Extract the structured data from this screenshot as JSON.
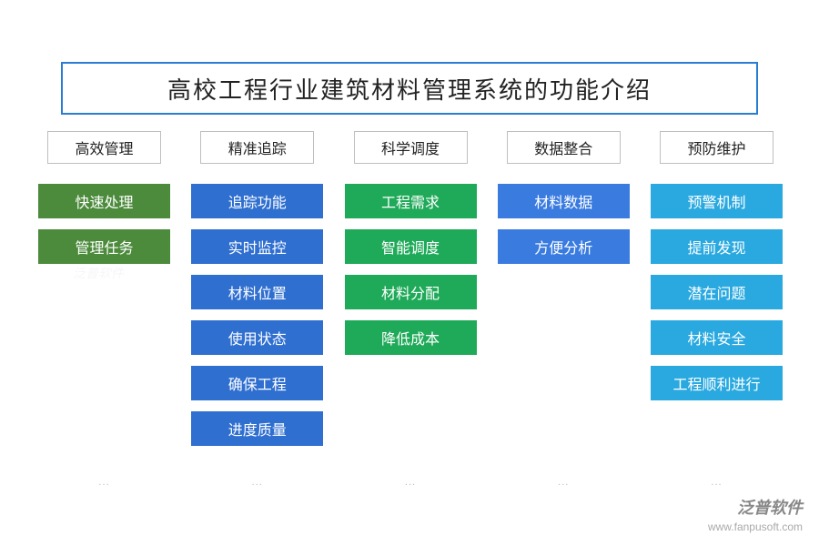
{
  "title": "高校工程行业建筑材料管理系统的功能介绍",
  "title_border_color": "#2b7cd3",
  "title_fontsize": 26,
  "header_border_color": "#bfbfbf",
  "header_fontsize": 16,
  "item_fontsize": 16,
  "item_text_color": "#ffffff",
  "background_color": "#ffffff",
  "ellipsis_text": "...",
  "ellipsis_color": "#bbbbbb",
  "columns": [
    {
      "header": "高效管理",
      "color": "#4b8b3b",
      "items": [
        "快速处理",
        "管理任务"
      ]
    },
    {
      "header": "精准追踪",
      "color": "#2f6fd0",
      "items": [
        "追踪功能",
        "实时监控",
        "材料位置",
        "使用状态",
        "确保工程",
        "进度质量"
      ]
    },
    {
      "header": "科学调度",
      "color": "#1faa59",
      "items": [
        "工程需求",
        "智能调度",
        "材料分配",
        "降低成本"
      ]
    },
    {
      "header": "数据整合",
      "color": "#3a7be0",
      "items": [
        "材料数据",
        "方便分析"
      ]
    },
    {
      "header": "预防维护",
      "color": "#2aa9e0",
      "items": [
        "预警机制",
        "提前发现",
        "潜在问题",
        "材料安全",
        "工程顺利进行"
      ]
    }
  ],
  "watermark": {
    "brand": "泛普软件",
    "url": "www.fanpusoft.com",
    "center_hint": "泛普软件"
  }
}
